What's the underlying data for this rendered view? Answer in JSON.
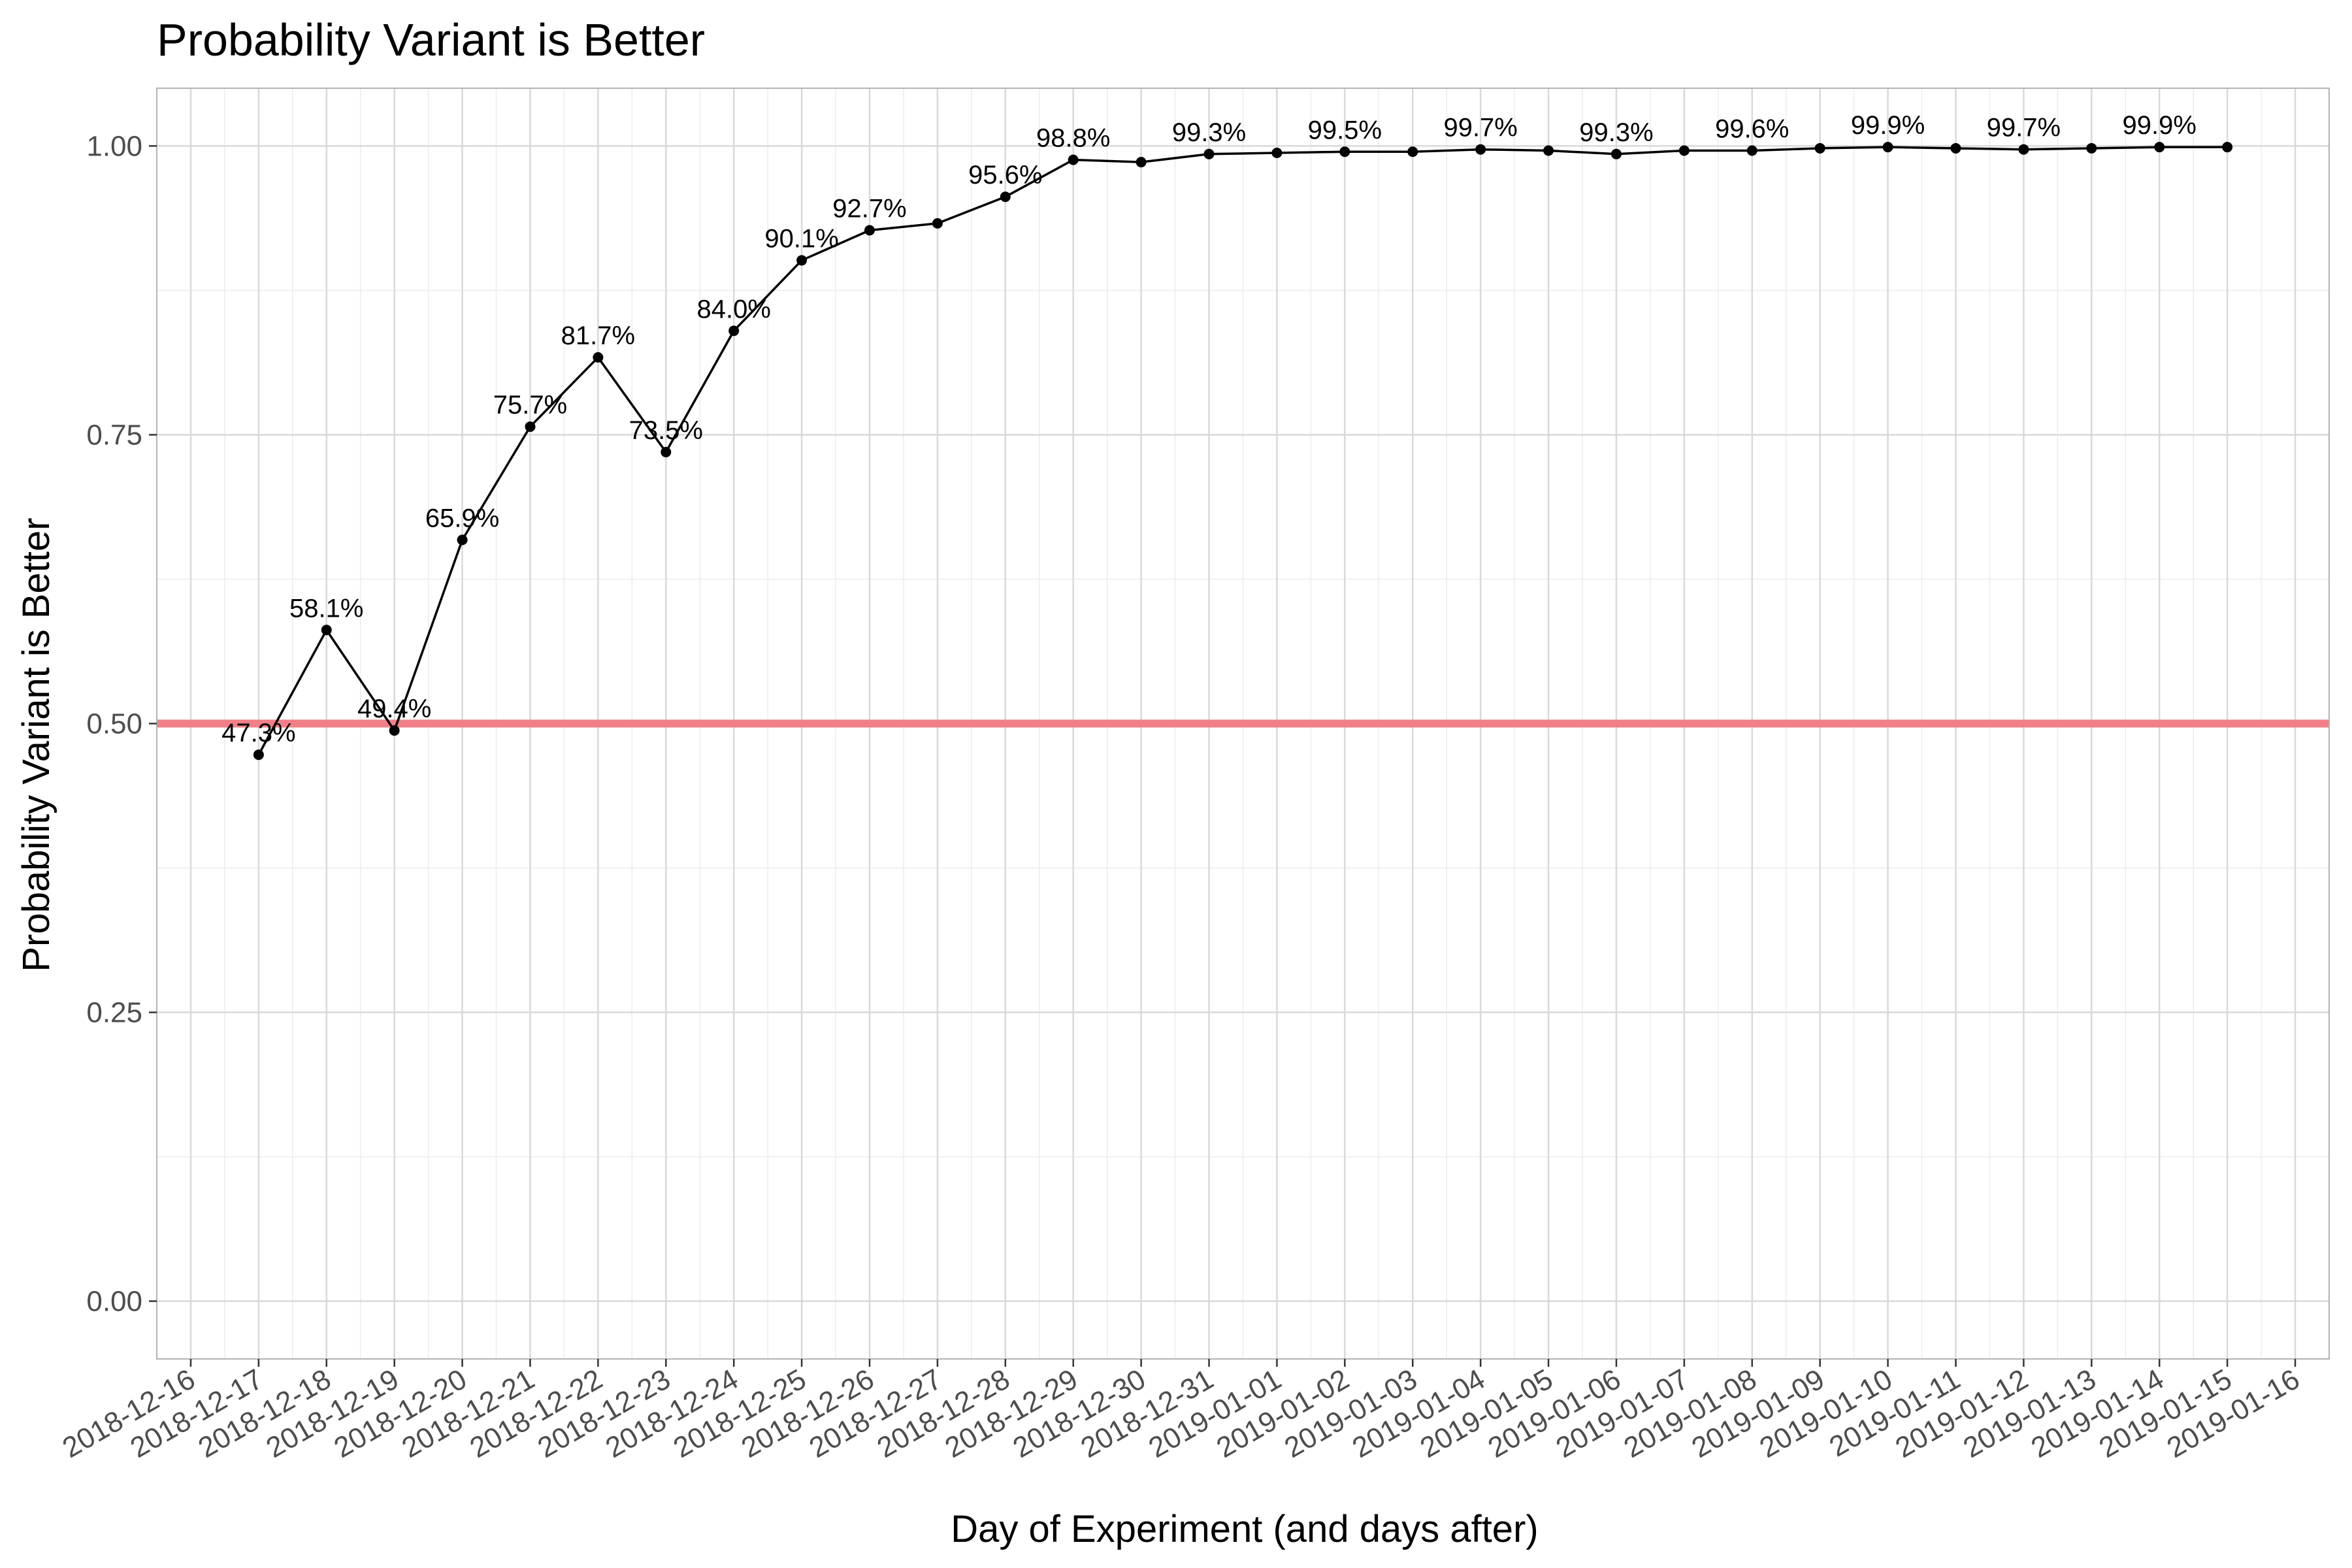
{
  "chart_data": {
    "type": "line",
    "title": "Probability Variant is Better",
    "xlabel": "Day of Experiment (and days after)",
    "ylabel": "Probability Variant is Better",
    "x_tick_labels": [
      "2018-12-16",
      "2018-12-17",
      "2018-12-18",
      "2018-12-19",
      "2018-12-20",
      "2018-12-21",
      "2018-12-22",
      "2018-12-23",
      "2018-12-24",
      "2018-12-25",
      "2018-12-26",
      "2018-12-27",
      "2018-12-28",
      "2018-12-29",
      "2018-12-30",
      "2018-12-31",
      "2019-01-01",
      "2019-01-02",
      "2019-01-03",
      "2019-01-04",
      "2019-01-05",
      "2019-01-06",
      "2019-01-07",
      "2019-01-08",
      "2019-01-09",
      "2019-01-10",
      "2019-01-11",
      "2019-01-12",
      "2019-01-13",
      "2019-01-14",
      "2019-01-15",
      "2019-01-16"
    ],
    "y_ticks": [
      "0.00",
      "0.25",
      "0.50",
      "0.75",
      "1.00"
    ],
    "ylim": [
      -0.05,
      1.05
    ],
    "x": [
      "2018-12-17",
      "2018-12-18",
      "2018-12-19",
      "2018-12-20",
      "2018-12-21",
      "2018-12-22",
      "2018-12-23",
      "2018-12-24",
      "2018-12-25",
      "2018-12-26",
      "2018-12-27",
      "2018-12-28",
      "2018-12-29",
      "2018-12-30",
      "2018-12-31",
      "2019-01-01",
      "2019-01-02",
      "2019-01-03",
      "2019-01-04",
      "2019-01-05",
      "2019-01-06",
      "2019-01-07",
      "2019-01-08",
      "2019-01-09",
      "2019-01-10",
      "2019-01-11",
      "2019-01-12",
      "2019-01-13",
      "2019-01-14",
      "2019-01-15"
    ],
    "values": [
      0.473,
      0.581,
      0.494,
      0.659,
      0.757,
      0.817,
      0.735,
      0.84,
      0.901,
      0.927,
      0.933,
      0.956,
      0.988,
      0.986,
      0.993,
      0.994,
      0.995,
      0.995,
      0.997,
      0.996,
      0.993,
      0.996,
      0.996,
      0.998,
      0.999,
      0.998,
      0.997,
      0.998,
      0.999,
      0.999
    ],
    "labels": [
      "47.3%",
      "58.1%",
      "49.4%",
      "65.9%",
      "75.7%",
      "81.7%",
      "73.5%",
      "84.0%",
      "90.1%",
      "92.7%",
      "",
      "95.6%",
      "98.8%",
      "",
      "99.3%",
      "",
      "99.5%",
      "",
      "99.7%",
      "",
      "99.3%",
      "",
      "99.6%",
      "",
      "99.9%",
      "",
      "99.7%",
      "",
      "99.9%",
      ""
    ],
    "reference_line": {
      "y": 0.5,
      "color": "#f07f87"
    },
    "line_color": "#000000",
    "grid": true,
    "panel_border_color": "#b3b3b3",
    "grid_color": "#d9d9d9"
  }
}
